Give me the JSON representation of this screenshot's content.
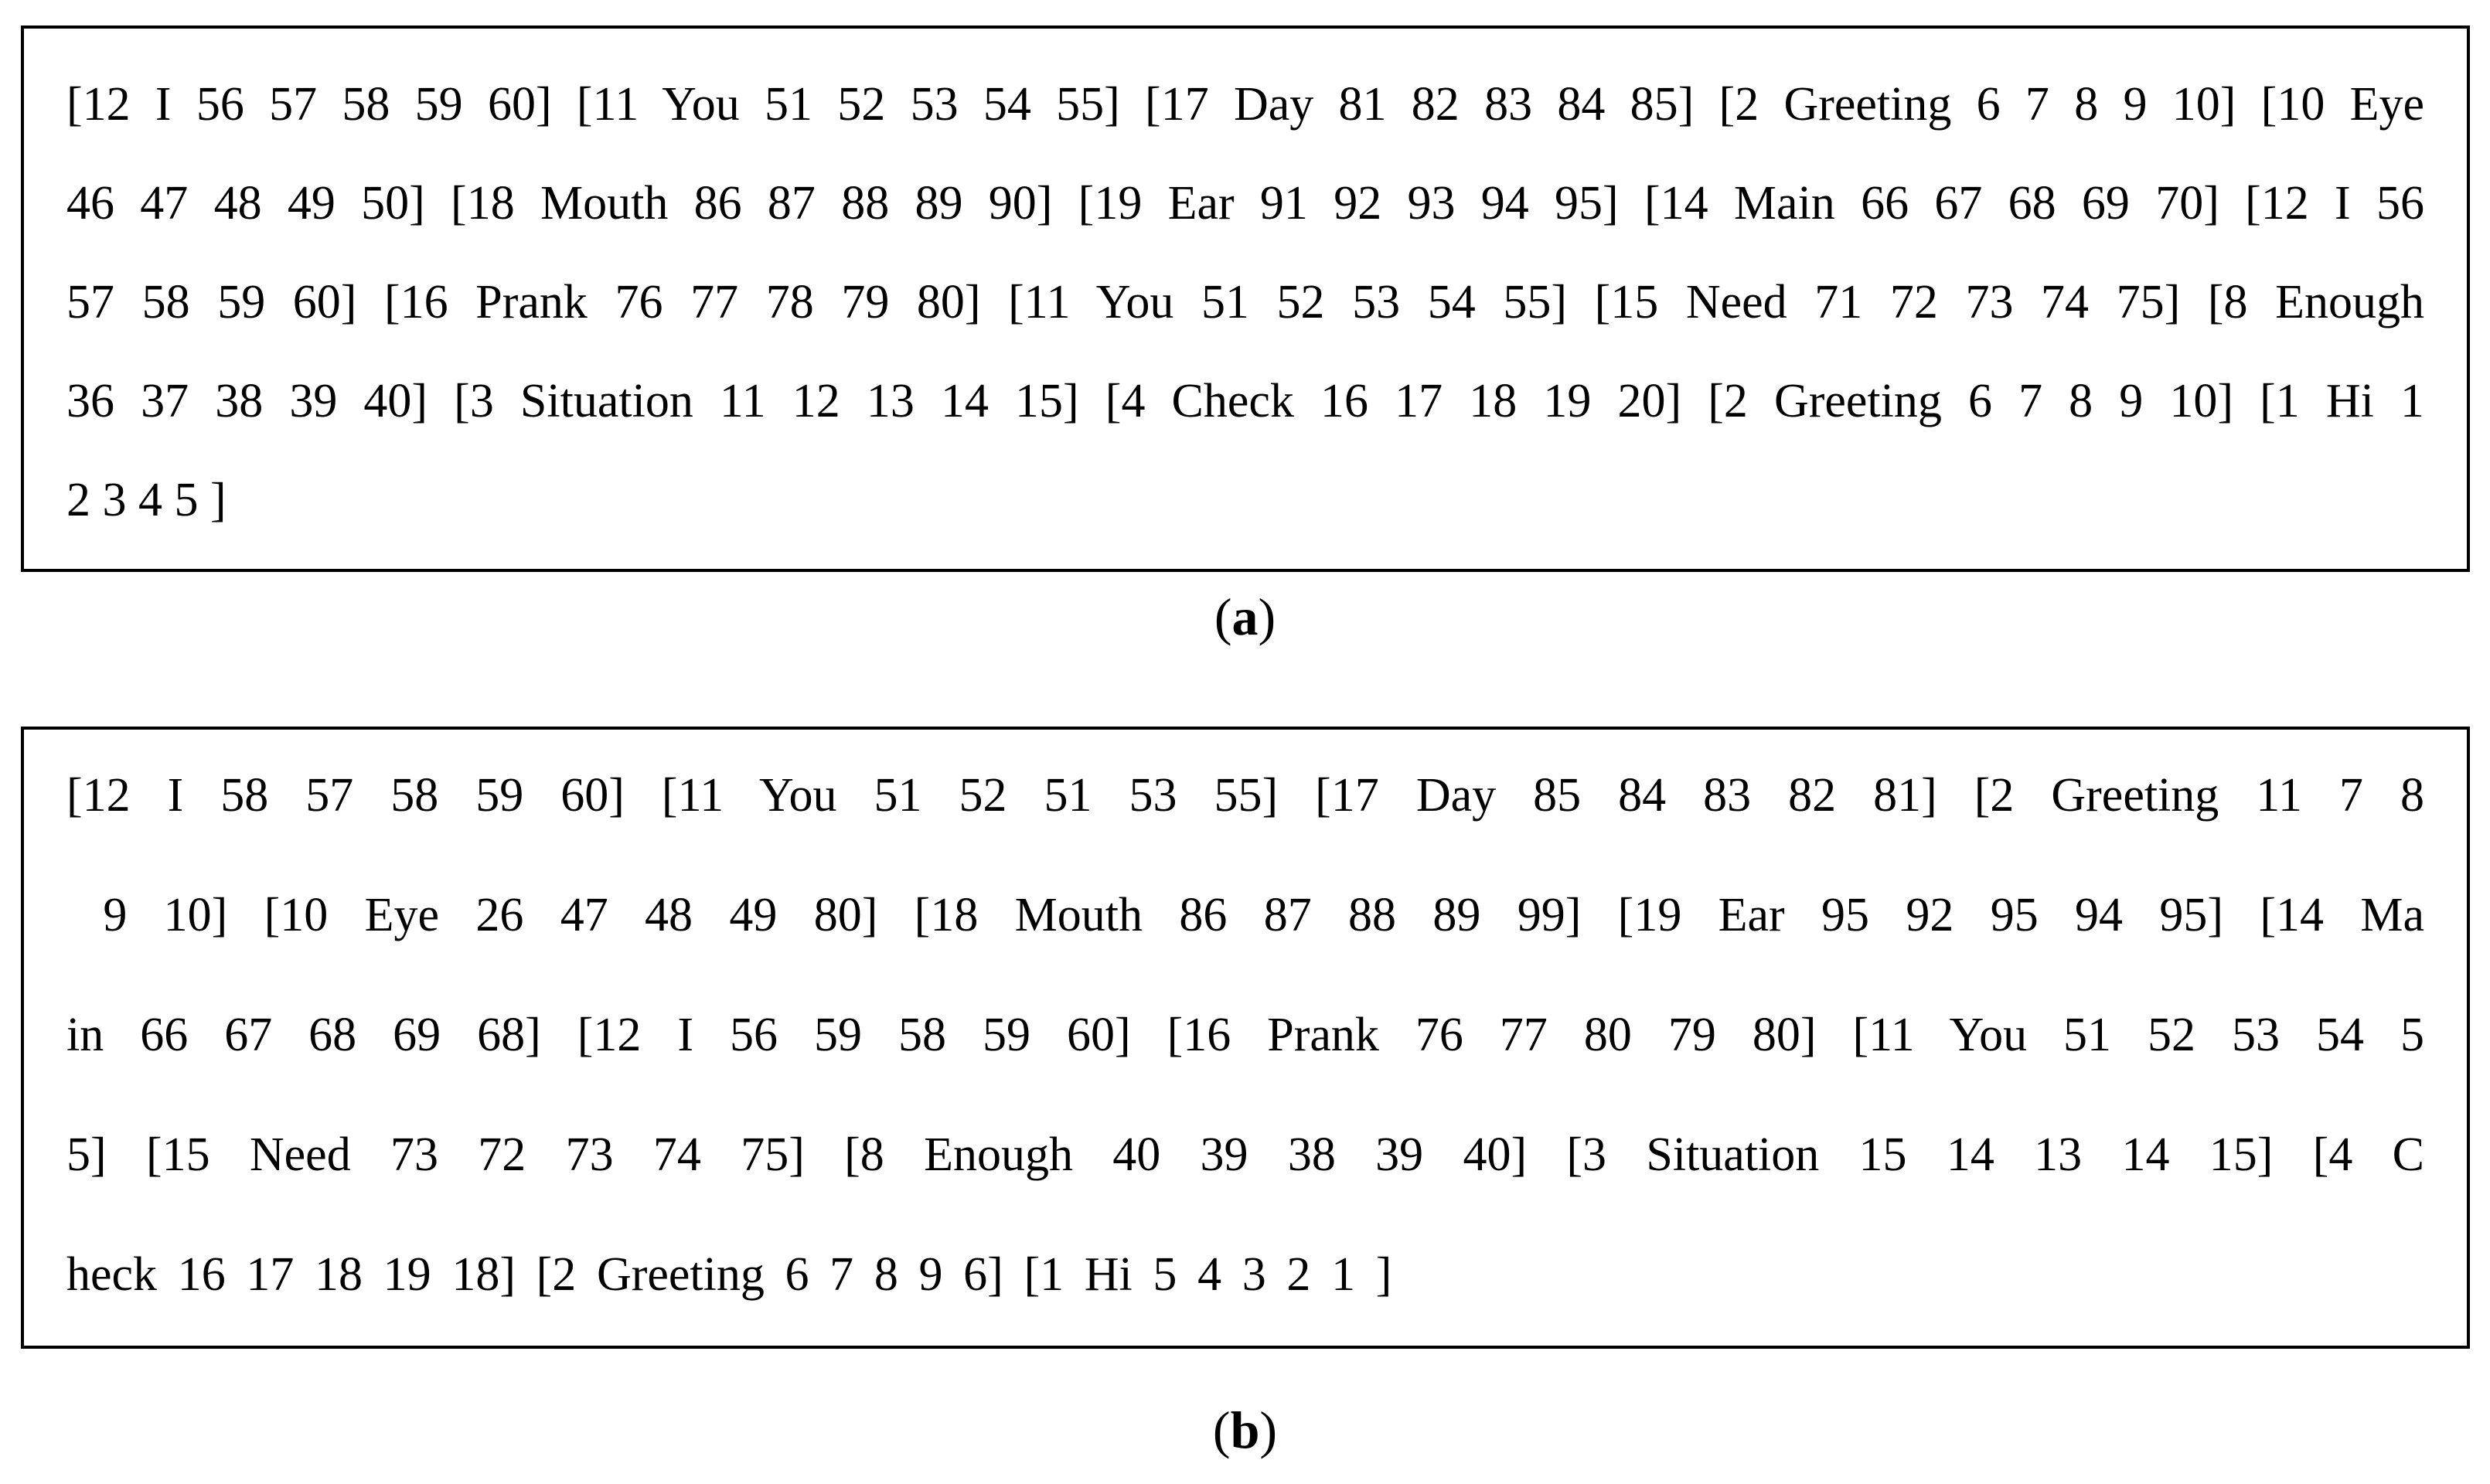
{
  "figure": {
    "description_visible_panels": 2
  },
  "panel_a": {
    "lines": [
      "[12 I 56 57 58 59 60] [11 You 51 52 53 54 55] [17 Day 81 82 83 84 85] [2 Greeting 6 7 8 9 10] [10 Eye",
      "46 47 48 49 50] [18 Mouth 86 87 88 89 90] [19 Ear 91 92 93 94 95] [14 Main 66 67 68 69 70] [12 I 56",
      "57 58 59 60] [16 Prank 76 77 78 79 80] [11 You 51 52 53 54 55] [15 Need 71 72 73 74 75] [8 Enough",
      "36 37 38 39 40] [3 Situation 11 12 13 14 15] [4 Check 16 17 18 19 20] [2 Greeting 6 7 8 9 10] [1 Hi 1",
      "2 3 4 5 ]"
    ]
  },
  "panel_b": {
    "lines": [
      "[12 I 58 57 58 59 60] [11 You 51 52 51 53 55] [17 Day 85 84 83 82 81] [2 Greeting 11 7 8",
      " 9 10] [10 Eye 26 47 48 49 80] [18 Mouth 86 87 88 89 99] [19 Ear 95 92 95 94 95] [14 Ma",
      "in 66 67 68 69 68] [12 I 56 59 58 59 60] [16 Prank 76 77 80 79 80] [11 You 51 52 53 54 5",
      "5] [15 Need 73 72 73 74 75] [8 Enough 40 39 38 39 40] [3 Situation 15 14 13 14 15] [4 C",
      "heck 16 17 18 19 18] [2 Greeting 6 7 8 9 6] [1 Hi 5 4 3 2 1 ]"
    ]
  },
  "labels": {
    "a": {
      "open": "(",
      "letter": "a",
      "close": ")"
    },
    "b": {
      "open": "(",
      "letter": "b",
      "close": ")"
    }
  }
}
